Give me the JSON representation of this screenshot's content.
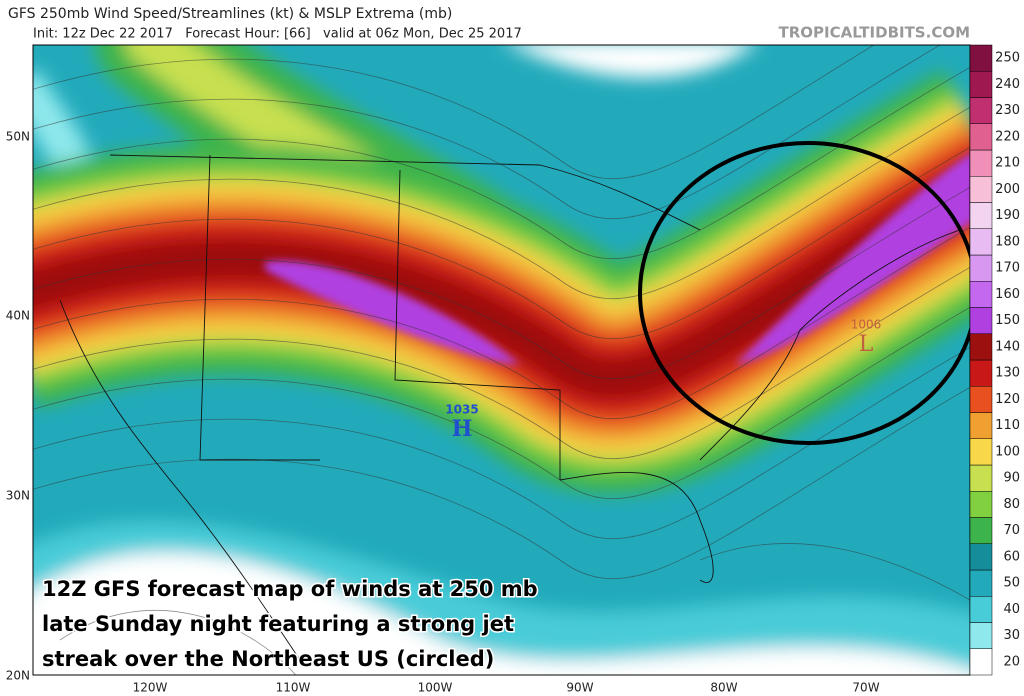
{
  "header": {
    "title": "GFS 250mb Wind Speed/Streamlines (kt) & MSLP Extrema (mb)",
    "subtitle": "Init: 12z Dec 22 2017   Forecast Hour: [66]   valid at 06z Mon, Dec 25 2017",
    "site": "TROPICALTIDBITS.COM"
  },
  "map": {
    "lat_labels": [
      "50N",
      "40N",
      "30N",
      "20N"
    ],
    "lon_labels": [
      "120W",
      "110W",
      "100W",
      "90W",
      "80W",
      "70W"
    ],
    "pressure_centers": [
      {
        "value": 1035,
        "symbol": "H"
      },
      {
        "value": 1006,
        "symbol": "L"
      }
    ],
    "caption": [
      "12Z GFS forecast map of winds at 250 mb",
      "late Sunday night featuring a strong jet",
      "streak over the Northeast US (circled)"
    ]
  },
  "colorbar": {
    "ticks": [
      20,
      30,
      40,
      50,
      60,
      70,
      80,
      90,
      100,
      110,
      120,
      130,
      140,
      150,
      160,
      170,
      180,
      190,
      200,
      210,
      220,
      230,
      240,
      250
    ],
    "colors": [
      "#ffffff",
      "#8ee8ec",
      "#48ccd8",
      "#22aabb",
      "#168d9a",
      "#3cb44b",
      "#80d040",
      "#c8e050",
      "#f8d848",
      "#f0a030",
      "#e85020",
      "#c81818",
      "#9c1010",
      "#b040e0",
      "#c468f0",
      "#d898f2",
      "#e8bcf2",
      "#f2d4f0",
      "#f8c0d8",
      "#f090b8",
      "#e06090",
      "#c03070",
      "#a01850",
      "#801040"
    ]
  }
}
